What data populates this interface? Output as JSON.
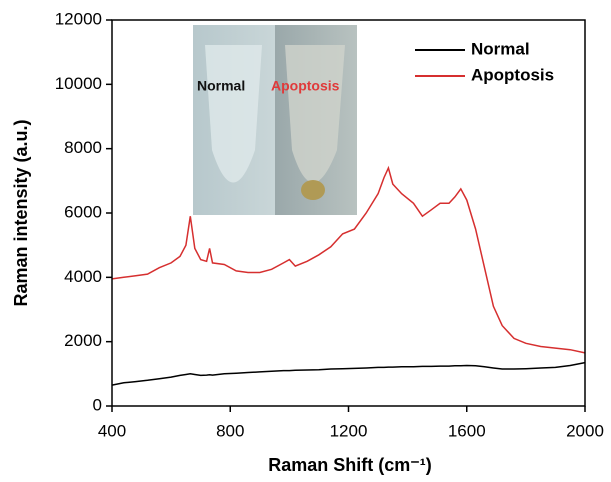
{
  "chart_data": {
    "type": "line",
    "xlabel": "Raman Shift (cm⁻¹)",
    "ylabel": "Raman intensity (a.u.)",
    "x": [
      400,
      440,
      480,
      520,
      560,
      600,
      630,
      650,
      665,
      680,
      700,
      720,
      730,
      740,
      780,
      820,
      860,
      900,
      940,
      980,
      1000,
      1020,
      1060,
      1100,
      1140,
      1180,
      1220,
      1260,
      1300,
      1320,
      1335,
      1350,
      1380,
      1420,
      1450,
      1480,
      1510,
      1540,
      1560,
      1580,
      1600,
      1630,
      1660,
      1690,
      1720,
      1760,
      1800,
      1850,
      1900,
      1950,
      2000
    ],
    "series": [
      {
        "name": "Normal",
        "color": "#000000",
        "values": [
          650,
          720,
          760,
          800,
          850,
          900,
          950,
          980,
          1000,
          980,
          950,
          960,
          970,
          960,
          1000,
          1020,
          1040,
          1060,
          1080,
          1100,
          1100,
          1110,
          1120,
          1130,
          1150,
          1160,
          1170,
          1180,
          1200,
          1200,
          1210,
          1210,
          1220,
          1220,
          1230,
          1230,
          1240,
          1240,
          1250,
          1250,
          1260,
          1250,
          1220,
          1180,
          1150,
          1150,
          1160,
          1180,
          1200,
          1260,
          1350
        ]
      },
      {
        "name": "Apoptosis",
        "color": "#d62f2f",
        "values": [
          3950,
          4000,
          4050,
          4100,
          4300,
          4450,
          4650,
          5000,
          5900,
          4900,
          4550,
          4500,
          4900,
          4450,
          4400,
          4200,
          4150,
          4150,
          4250,
          4450,
          4550,
          4350,
          4500,
          4700,
          4950,
          5350,
          5500,
          6000,
          6600,
          7100,
          7400,
          6900,
          6600,
          6300,
          5900,
          6100,
          6300,
          6300,
          6500,
          6750,
          6400,
          5500,
          4300,
          3100,
          2500,
          2100,
          1950,
          1850,
          1800,
          1750,
          1650
        ]
      }
    ],
    "xlim": [
      400,
      2000
    ],
    "xticks": [
      400,
      800,
      1200,
      1600,
      2000
    ],
    "ylim": [
      0,
      12000
    ],
    "yticks": [
      0,
      2000,
      4000,
      6000,
      8000,
      10000,
      12000
    ],
    "legend": "upper right",
    "inset_labels": [
      "Normal",
      "Apoptosis"
    ]
  }
}
